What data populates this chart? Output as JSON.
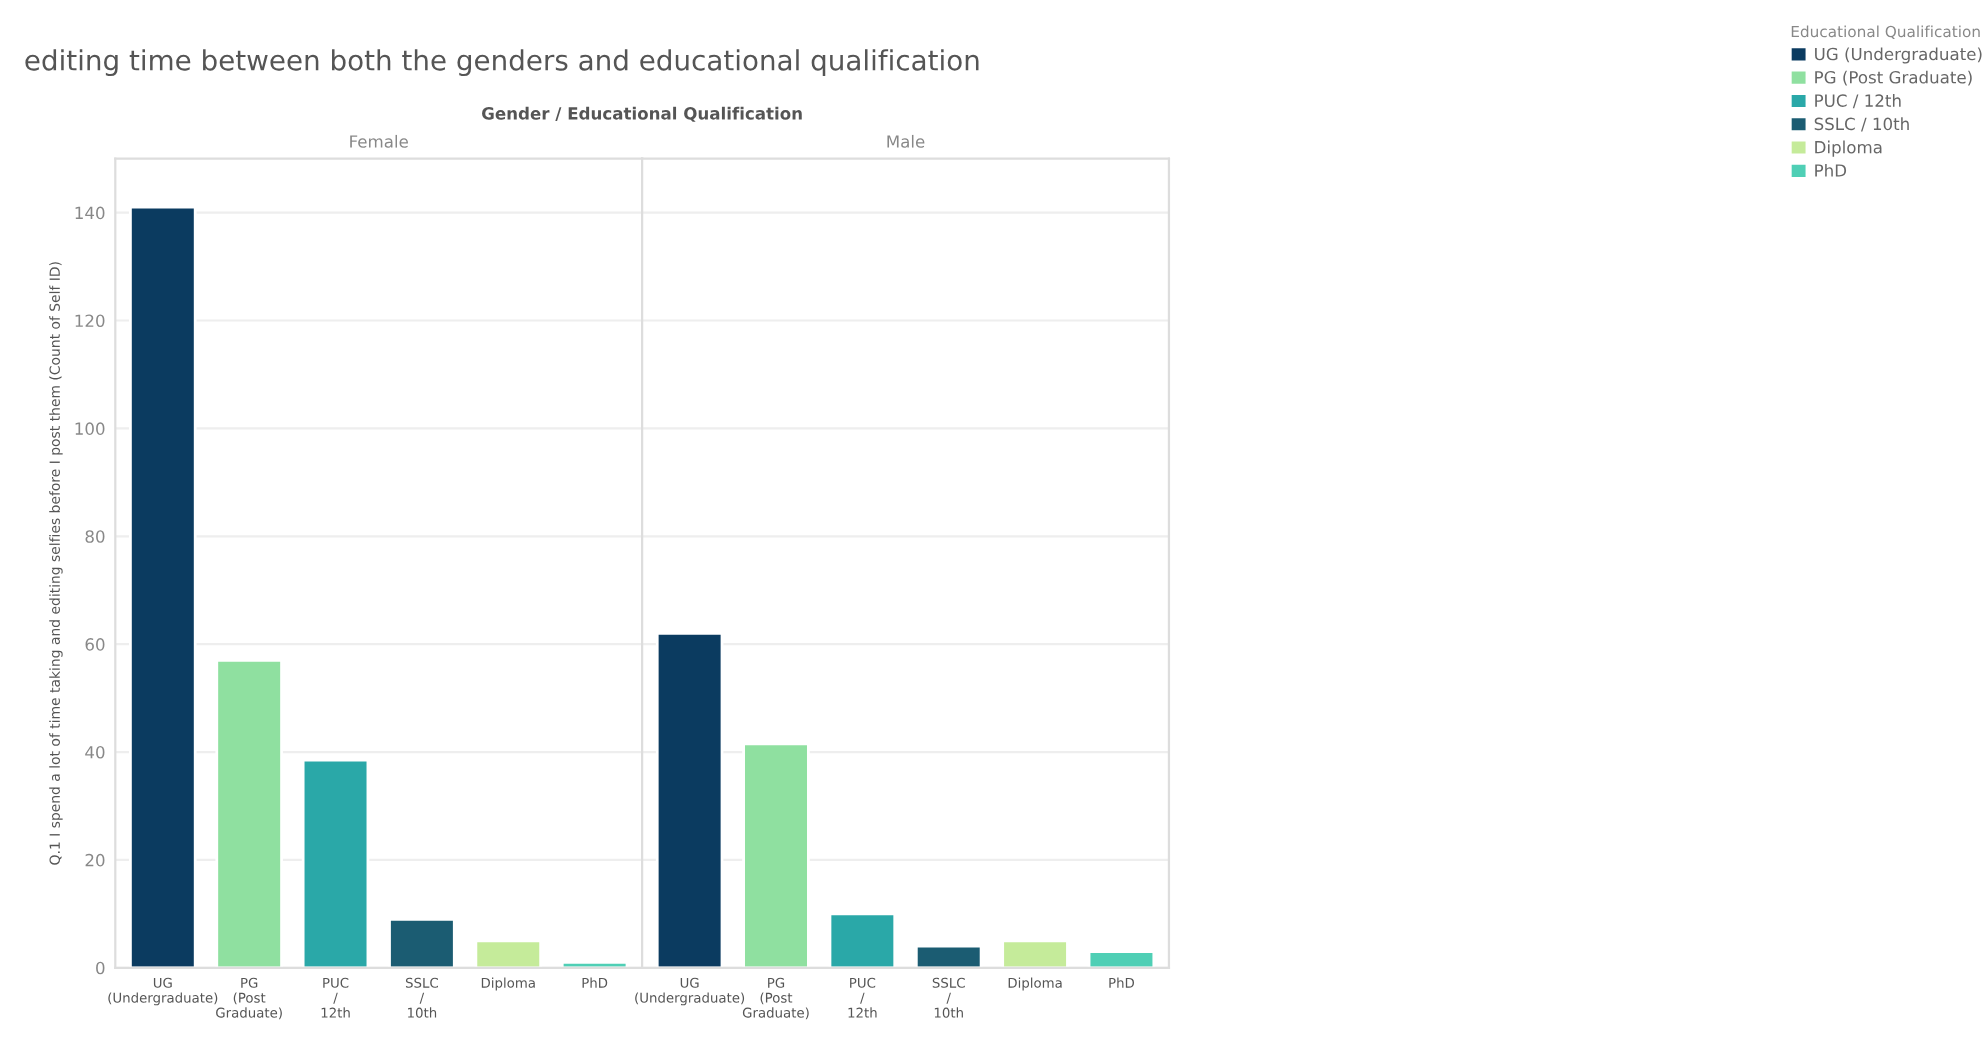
{
  "chart_data": [
    {
      "type": "bar",
      "title": "editing time between both the genders and educational qualification",
      "subtitle": "Gender / Educational Qualification",
      "xlabel": "Female",
      "ylabel": "Q.1 I spend a lot of time taking and editing selfies before I post them (Count of Self ID)",
      "categories": [
        "UG (Undergraduate)",
        "PG (Post Graduate)",
        "PUC / 12th",
        "SSLC / 10th",
        "Diploma",
        "PhD"
      ],
      "series": [
        {
          "name": "UG (Undergraduate)",
          "color": "#0b3b60",
          "values": [
            141,
            null,
            null,
            null,
            null,
            null
          ]
        },
        {
          "name": "PG (Post Graduate)",
          "color": "#8fe0a0",
          "values": [
            null,
            57,
            null,
            null,
            null,
            null
          ]
        },
        {
          "name": "PUC / 12th",
          "color": "#2aa8a8",
          "values": [
            null,
            null,
            38.5,
            null,
            null,
            null
          ]
        },
        {
          "name": "SSLC / 10th",
          "color": "#1b5c72",
          "values": [
            null,
            null,
            null,
            9,
            null,
            null
          ]
        },
        {
          "name": "Diploma",
          "color": "#c5eb9a",
          "values": [
            null,
            null,
            null,
            null,
            5,
            null
          ]
        },
        {
          "name": "PhD",
          "color": "#4fcfb5",
          "values": [
            null,
            null,
            null,
            null,
            null,
            1
          ]
        }
      ],
      "ylim": [
        0,
        150
      ],
      "yticks": [
        0,
        20,
        40,
        60,
        80,
        100,
        120,
        140
      ],
      "grid": "y",
      "legend": "right",
      "legend_title": "Educational Qualification"
    },
    {
      "type": "bar",
      "xlabel": "Male",
      "categories": [
        "UG (Undergraduate)",
        "PG (Post Graduate)",
        "PUC / 12th",
        "SSLC / 10th",
        "Diploma",
        "PhD"
      ],
      "series": [
        {
          "color": "#0b3b60",
          "values": [
            62,
            null,
            null,
            null,
            null,
            null
          ]
        },
        {
          "color": "#8fe0a0",
          "values": [
            null,
            41.5,
            null,
            null,
            null,
            null
          ]
        },
        {
          "color": "#2aa8a8",
          "values": [
            null,
            null,
            10,
            null,
            null,
            null
          ]
        },
        {
          "color": "#1b5c72",
          "values": [
            null,
            null,
            null,
            4,
            null,
            null
          ]
        },
        {
          "color": "#c5eb9a",
          "values": [
            null,
            null,
            null,
            null,
            5,
            null
          ]
        },
        {
          "color": "#4fcfb5",
          "values": [
            null,
            null,
            null,
            null,
            null,
            3
          ]
        }
      ],
      "ylim": [
        0,
        150
      ],
      "yticks": [
        0,
        20,
        40,
        60,
        80,
        100,
        120,
        140
      ],
      "grid": "y",
      "tick_labels": "x"
    }
  ]
}
